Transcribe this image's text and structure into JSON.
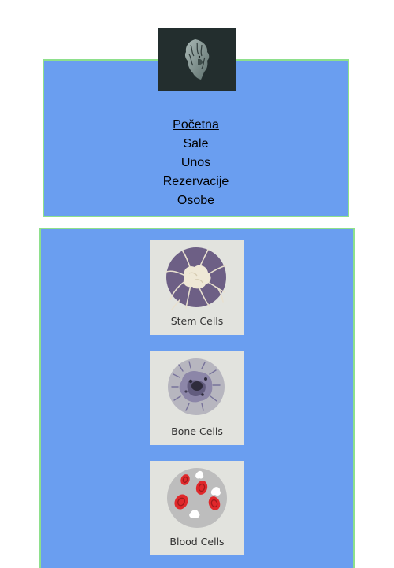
{
  "logo": {
    "icon": "lion-head-icon"
  },
  "nav": {
    "items": [
      {
        "label": "Početna",
        "active": true
      },
      {
        "label": "Sale",
        "active": false
      },
      {
        "label": "Unos",
        "active": false
      },
      {
        "label": "Rezervacije",
        "active": false
      },
      {
        "label": "Osobe",
        "active": false
      }
    ]
  },
  "cards": [
    {
      "label": "Stem Cells",
      "icon": "stem-cell-icon"
    },
    {
      "label": "Bone Cells",
      "icon": "bone-cell-icon"
    },
    {
      "label": "Blood Cells",
      "icon": "blood-cell-icon"
    }
  ],
  "colors": {
    "panel_background": "#6a9ef0",
    "panel_border": "#8ee08c",
    "logo_background": "#232e2e",
    "card_background": "#e2e3de"
  }
}
